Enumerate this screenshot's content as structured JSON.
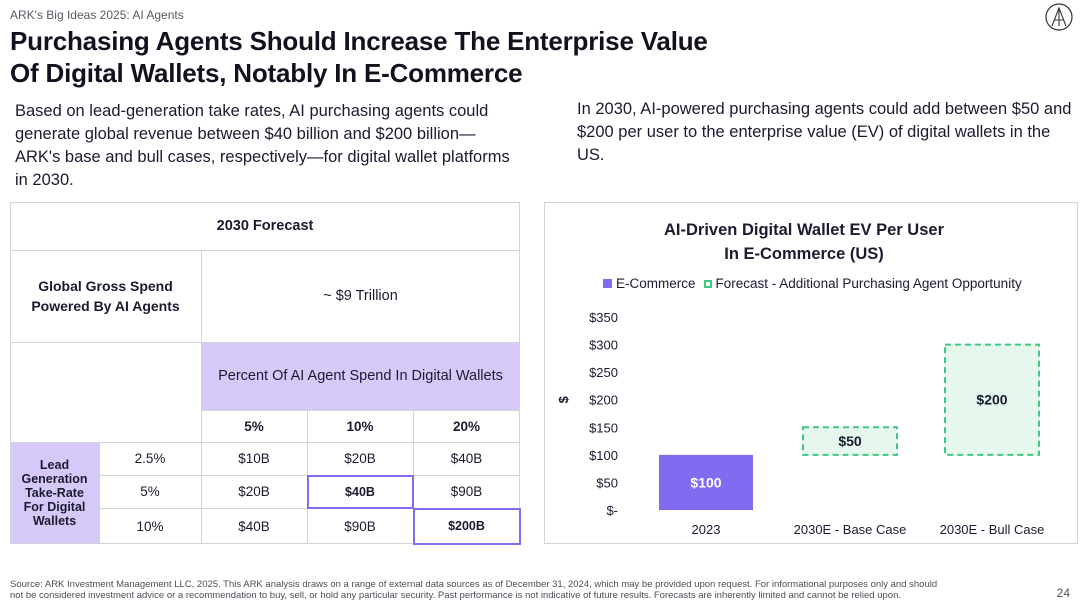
{
  "header": {
    "kicker": "ARK's Big Ideas 2025: AI Agents",
    "title_line1": "Purchasing Agents Should Increase The Enterprise Value",
    "title_line2": "Of Digital Wallets, Notably In E-Commerce"
  },
  "left_text": "Based on lead-generation take rates, AI purchasing agents could generate global revenue between $40 billion and $200 billion—ARK's base and bull cases, respectively—for digital wallet platforms in 2030.",
  "right_text": "In 2030, AI-powered purchasing agents could add between $50 and $200 per user to the enterprise value (EV) of digital wallets in the US.",
  "table": {
    "header": "2030 Forecast",
    "gross_spend_label": "Global Gross Spend Powered By AI Agents",
    "gross_spend_value": "~ $9 Trillion",
    "percent_header": "Percent Of AI Agent Spend In Digital Wallets",
    "columns": [
      "5%",
      "10%",
      "20%"
    ],
    "row_header": "Lead Generation Take-Rate For Digital Wallets",
    "rows": [
      {
        "rate": "2.5%",
        "values": [
          "$10B",
          "$20B",
          "$40B"
        ]
      },
      {
        "rate": "5%",
        "values": [
          "$20B",
          "$40B",
          "$90B"
        ]
      },
      {
        "rate": "10%",
        "values": [
          "$40B",
          "$90B",
          "$200B"
        ]
      }
    ]
  },
  "chart_data": {
    "type": "bar",
    "title_line1": "AI-Driven Digital Wallet EV Per User",
    "title_line2": "In E-Commerce (US)",
    "legend": [
      "E-Commerce",
      "Forecast - Additional Purchasing Agent Opportunity"
    ],
    "ylabel": "$",
    "ylim": [
      0,
      350
    ],
    "yticks": [
      0,
      50,
      100,
      150,
      200,
      250,
      300,
      350
    ],
    "ytick_labels": [
      "$-",
      "$50",
      "$100",
      "$150",
      "$200",
      "$250",
      "$300",
      "$350"
    ],
    "categories": [
      "2023",
      "2030E - Base Case",
      "2030E - Bull Case"
    ],
    "series": [
      {
        "name": "E-Commerce",
        "values": [
          100,
          100,
          100
        ],
        "visible": [
          true,
          false,
          false
        ],
        "color": "#7f6cf0"
      },
      {
        "name": "Forecast - Additional Purchasing Agent Opportunity",
        "values": [
          0,
          50,
          200
        ],
        "color": "#e6f7ee",
        "border": "#3ec882"
      }
    ],
    "data_labels": [
      "$100",
      "$50",
      "$200"
    ]
  },
  "footer": {
    "source_line1": "Source: ARK Investment Management LLC, 2025. This ARK analysis draws on a range of external data sources as of December 31, 2024, which may be provided upon request. For informational purposes only and should",
    "source_line2": "not be considered investment advice or a recommendation to buy, sell, or hold any particular security. Past performance is not indicative of future results. Forecasts are inherently limited and cannot be relied upon.",
    "page_number": "24"
  },
  "colors": {
    "accent": "#7f6cf0",
    "lavender": "#d6c9f9",
    "green": "#3ec882",
    "green_fill": "#e6f7ee"
  }
}
